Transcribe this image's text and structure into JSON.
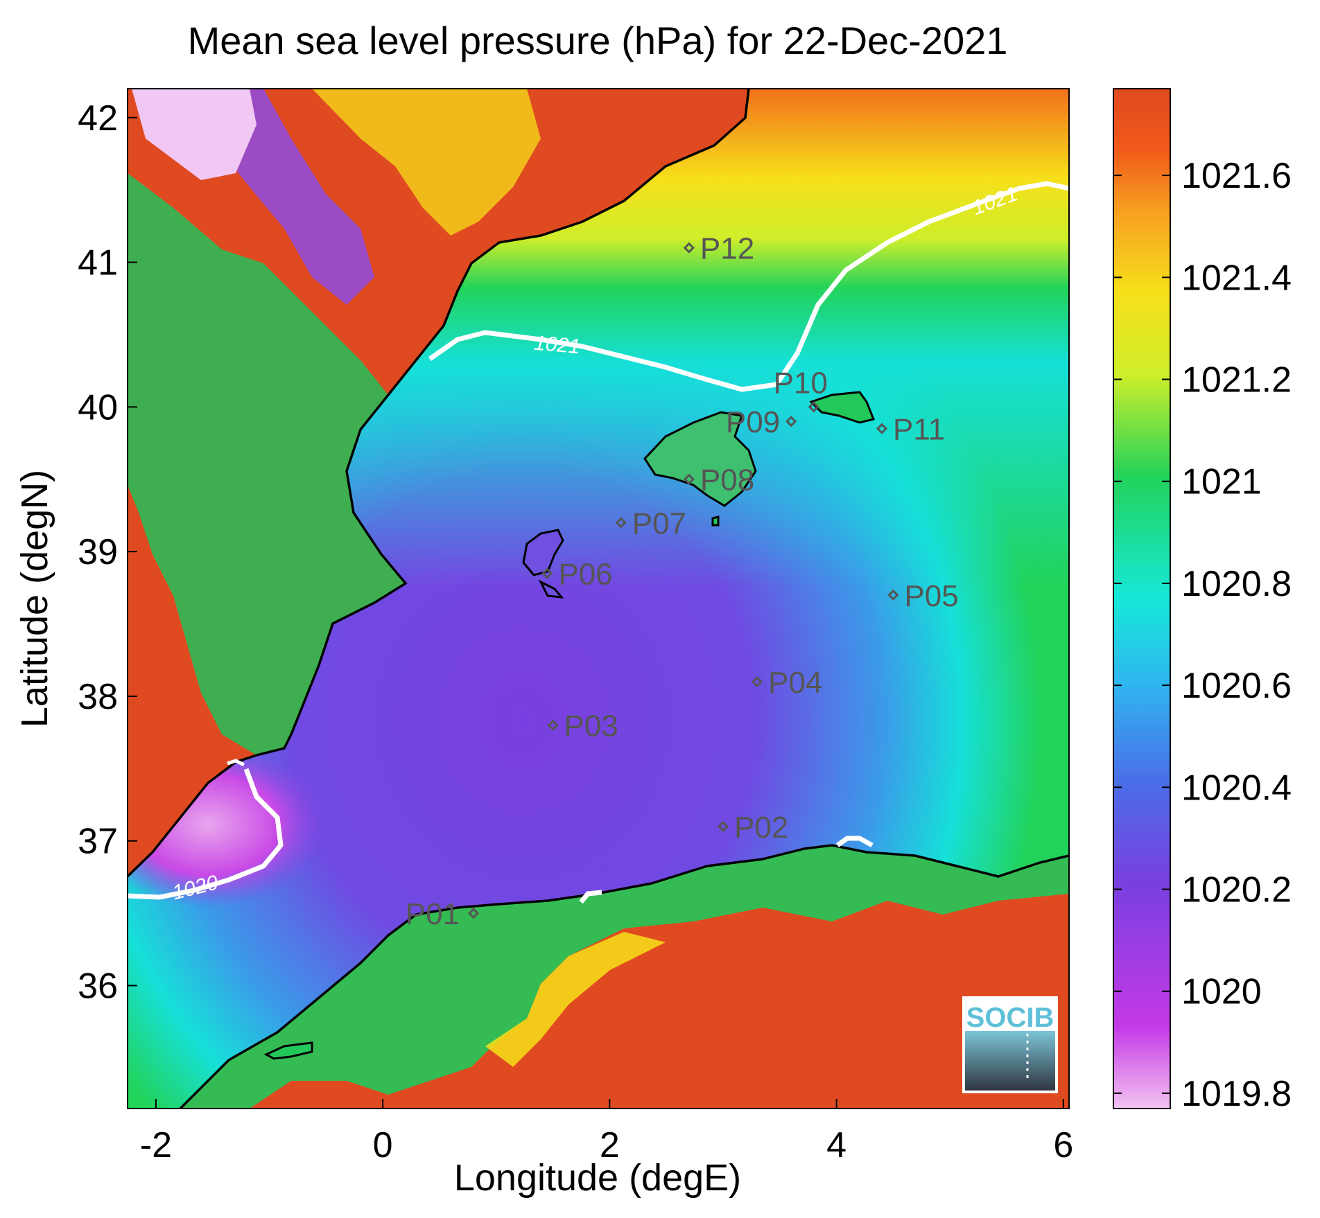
{
  "title": "Mean sea level pressure (hPa) for 22-Dec-2021",
  "xlabel": "Longitude (degE)",
  "ylabel": "Latitude (degN)",
  "x_ticks": [
    {
      "value": -2,
      "label": "-2"
    },
    {
      "value": 0,
      "label": "0"
    },
    {
      "value": 2,
      "label": "2"
    },
    {
      "value": 4,
      "label": "4"
    },
    {
      "value": 6,
      "label": "6"
    }
  ],
  "y_ticks": [
    {
      "value": 36,
      "label": "36"
    },
    {
      "value": 37,
      "label": "37"
    },
    {
      "value": 38,
      "label": "38"
    },
    {
      "value": 39,
      "label": "39"
    },
    {
      "value": 40,
      "label": "40"
    },
    {
      "value": 41,
      "label": "41"
    },
    {
      "value": 42,
      "label": "42"
    }
  ],
  "colorbar": {
    "range": [
      1019.77,
      1021.77
    ],
    "ticks": [
      {
        "value": 1019.8,
        "label": "1019.8"
      },
      {
        "value": 1020.0,
        "label": "1020"
      },
      {
        "value": 1020.2,
        "label": "1020.2"
      },
      {
        "value": 1020.4,
        "label": "1020.4"
      },
      {
        "value": 1020.6,
        "label": "1020.6"
      },
      {
        "value": 1020.8,
        "label": "1020.8"
      },
      {
        "value": 1021.0,
        "label": "1021"
      },
      {
        "value": 1021.2,
        "label": "1021.2"
      },
      {
        "value": 1021.4,
        "label": "1021.4"
      },
      {
        "value": 1021.6,
        "label": "1021.6"
      }
    ],
    "colors": [
      "#f3c4f3",
      "#c43ae6",
      "#7a3fe0",
      "#4a6ee8",
      "#2fb8f0",
      "#16e8d8",
      "#22d35a",
      "#cfee2a",
      "#f6e01a",
      "#f7a020",
      "#f05a1a",
      "#e04a20"
    ]
  },
  "stations": [
    {
      "label": "P01",
      "lon": 0.8,
      "lat": 36.5
    },
    {
      "label": "P02",
      "lon": 3.0,
      "lat": 37.1
    },
    {
      "label": "P03",
      "lon": 1.5,
      "lat": 37.8
    },
    {
      "label": "P04",
      "lon": 3.3,
      "lat": 38.1
    },
    {
      "label": "P05",
      "lon": 4.5,
      "lat": 38.7
    },
    {
      "label": "P06",
      "lon": 1.45,
      "lat": 38.85
    },
    {
      "label": "P07",
      "lon": 2.1,
      "lat": 39.2
    },
    {
      "label": "P08",
      "lon": 2.7,
      "lat": 39.5
    },
    {
      "label": "P09",
      "lon": 3.6,
      "lat": 39.9
    },
    {
      "label": "P10",
      "lon": 3.8,
      "lat": 40.0
    },
    {
      "label": "P11",
      "lon": 4.4,
      "lat": 39.85
    },
    {
      "label": "P12",
      "lon": 2.7,
      "lat": 41.1
    }
  ],
  "contour_labels": {
    "c1021_upper": "1021",
    "c1021_lower": "1021",
    "c1020": "1020"
  },
  "logo_text": "SOCIB",
  "colors": {
    "land": "#e04a20",
    "coastline": "#000000",
    "contour": "#ffffff",
    "station_marker": "#555555"
  }
}
